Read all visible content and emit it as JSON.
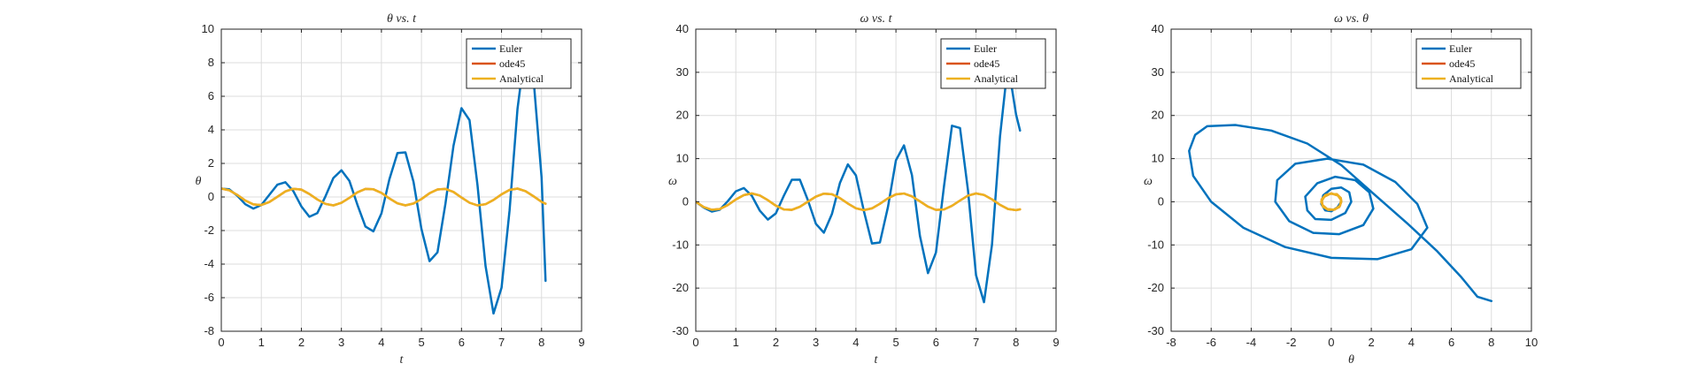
{
  "chart_data": [
    {
      "type": "line",
      "id": "theta_t",
      "title": "θ vs. t",
      "xlabel": "t",
      "ylabel": "θ",
      "xlim": [
        0,
        9
      ],
      "ylim": [
        -8,
        10
      ],
      "xticks": [
        0,
        1,
        2,
        3,
        4,
        5,
        6,
        7,
        8,
        9
      ],
      "yticks": [
        -8,
        -6,
        -4,
        -2,
        0,
        2,
        4,
        6,
        8,
        10
      ],
      "grid": true,
      "legend": "top-right",
      "series": [
        {
          "name": "Euler",
          "color": "#0072BD",
          "x": [
            0.0,
            0.2,
            0.4,
            0.6,
            0.8,
            1.0,
            1.2,
            1.4,
            1.6,
            1.8,
            2.0,
            2.2,
            2.4,
            2.6,
            2.8,
            3.0,
            3.2,
            3.4,
            3.6,
            3.8,
            4.0,
            4.2,
            4.4,
            4.6,
            4.8,
            5.0,
            5.2,
            5.4,
            5.6,
            5.8,
            6.0,
            6.2,
            6.4,
            6.6,
            6.8,
            7.0,
            7.2,
            7.4,
            7.6,
            7.8,
            8.0,
            8.1
          ],
          "y": [
            0.5,
            0.46,
            0.07,
            -0.43,
            -0.69,
            -0.48,
            0.13,
            0.73,
            0.88,
            0.35,
            -0.56,
            -1.18,
            -0.96,
            0.03,
            1.13,
            1.59,
            0.96,
            -0.47,
            -1.76,
            -2.05,
            -0.98,
            1.06,
            2.62,
            2.66,
            0.91,
            -1.91,
            -3.82,
            -3.3,
            -0.4,
            3.05,
            5.29,
            4.58,
            0.71,
            -4.11,
            -6.94,
            -5.4,
            -0.82,
            5.25,
            8.97,
            7.05,
            1.17,
            -5.0
          ]
        },
        {
          "name": "ode45",
          "color": "#D95319",
          "x": [
            0.0,
            0.2,
            0.4,
            0.6,
            0.8,
            1.0,
            1.2,
            1.4,
            1.6,
            1.8,
            2.0,
            2.2,
            2.4,
            2.6,
            2.8,
            3.0,
            3.2,
            3.4,
            3.6,
            3.8,
            4.0,
            4.2,
            4.4,
            4.6,
            4.8,
            5.0,
            5.2,
            5.4,
            5.6,
            5.8,
            6.0,
            6.2,
            6.4,
            6.6,
            6.8,
            7.0,
            7.2,
            7.4,
            7.6,
            7.8,
            8.0,
            8.1
          ],
          "y": [
            0.5,
            0.4,
            0.12,
            -0.21,
            -0.44,
            -0.48,
            -0.3,
            0.01,
            0.33,
            0.49,
            0.44,
            0.18,
            -0.15,
            -0.41,
            -0.5,
            -0.35,
            -0.05,
            0.28,
            0.48,
            0.46,
            0.24,
            -0.09,
            -0.38,
            -0.5,
            -0.39,
            -0.12,
            0.22,
            0.45,
            0.48,
            0.3,
            -0.03,
            -0.34,
            -0.5,
            -0.43,
            -0.18,
            0.16,
            0.42,
            0.5,
            0.35,
            0.04,
            -0.29,
            -0.4
          ]
        },
        {
          "name": "Analytical",
          "color": "#EDB120",
          "x": [
            0.0,
            0.2,
            0.4,
            0.6,
            0.8,
            1.0,
            1.2,
            1.4,
            1.6,
            1.8,
            2.0,
            2.2,
            2.4,
            2.6,
            2.8,
            3.0,
            3.2,
            3.4,
            3.6,
            3.8,
            4.0,
            4.2,
            4.4,
            4.6,
            4.8,
            5.0,
            5.2,
            5.4,
            5.6,
            5.8,
            6.0,
            6.2,
            6.4,
            6.6,
            6.8,
            7.0,
            7.2,
            7.4,
            7.6,
            7.8,
            8.0,
            8.1
          ],
          "y": [
            0.5,
            0.4,
            0.12,
            -0.21,
            -0.44,
            -0.48,
            -0.3,
            0.01,
            0.33,
            0.49,
            0.44,
            0.18,
            -0.15,
            -0.41,
            -0.5,
            -0.35,
            -0.05,
            0.28,
            0.48,
            0.46,
            0.24,
            -0.09,
            -0.38,
            -0.5,
            -0.39,
            -0.12,
            0.22,
            0.45,
            0.48,
            0.3,
            -0.03,
            -0.34,
            -0.5,
            -0.43,
            -0.18,
            0.16,
            0.42,
            0.5,
            0.35,
            0.04,
            -0.29,
            -0.4
          ]
        }
      ]
    },
    {
      "type": "line",
      "id": "omega_t",
      "title": "ω vs. t",
      "xlabel": "t",
      "ylabel": "ω",
      "xlim": [
        0,
        9
      ],
      "ylim": [
        -30,
        40
      ],
      "xticks": [
        0,
        1,
        2,
        3,
        4,
        5,
        6,
        7,
        8,
        9
      ],
      "yticks": [
        -30,
        -20,
        -10,
        0,
        10,
        20,
        30,
        40
      ],
      "grid": true,
      "legend": "top-right",
      "series": [
        {
          "name": "Euler",
          "color": "#0072BD",
          "x": [
            0.0,
            0.2,
            0.4,
            0.6,
            0.8,
            1.0,
            1.2,
            1.4,
            1.6,
            1.8,
            2.0,
            2.2,
            2.4,
            2.6,
            2.8,
            3.0,
            3.2,
            3.4,
            3.6,
            3.8,
            4.0,
            4.2,
            4.4,
            4.6,
            4.8,
            5.0,
            5.2,
            5.4,
            5.6,
            5.8,
            6.0,
            6.2,
            6.4,
            6.6,
            6.8,
            7.0,
            7.2,
            7.4,
            7.6,
            7.8,
            8.0,
            8.1
          ],
          "y": [
            0.0,
            -1.34,
            -2.27,
            -1.83,
            0.15,
            2.42,
            3.18,
            1.39,
            -2.09,
            -4.13,
            -2.7,
            1.42,
            5.1,
            5.13,
            0.4,
            -5.11,
            -7.16,
            -2.84,
            4.33,
            8.66,
            6.13,
            -2.15,
            -9.66,
            -9.42,
            -1.21,
            9.61,
            13.07,
            6.16,
            -7.9,
            -16.54,
            -11.76,
            3.6,
            17.62,
            17.1,
            2.64,
            -17.03,
            -23.27,
            -9.98,
            15.22,
            32.04,
            20.22,
            16.5
          ]
        },
        {
          "name": "ode45",
          "color": "#D95319",
          "x": [
            0.0,
            0.2,
            0.4,
            0.6,
            0.8,
            1.0,
            1.2,
            1.4,
            1.6,
            1.8,
            2.0,
            2.2,
            2.4,
            2.6,
            2.8,
            3.0,
            3.2,
            3.4,
            3.6,
            3.8,
            4.0,
            4.2,
            4.4,
            4.6,
            4.8,
            5.0,
            5.2,
            5.4,
            5.6,
            5.8,
            6.0,
            6.2,
            6.4,
            6.6,
            6.8,
            7.0,
            7.2,
            7.4,
            7.6,
            7.8,
            8.0,
            8.1
          ],
          "y": [
            0.0,
            -1.23,
            -1.86,
            -1.67,
            -0.75,
            0.51,
            1.55,
            1.92,
            1.46,
            0.37,
            -0.89,
            -1.78,
            -1.88,
            -1.17,
            0.02,
            1.2,
            1.89,
            1.74,
            0.84,
            -0.41,
            -1.5,
            -1.94,
            -1.52,
            -0.47,
            0.8,
            1.73,
            1.91,
            1.25,
            0.1,
            -1.11,
            -1.87,
            -1.78,
            -0.93,
            0.3,
            1.43,
            1.94,
            1.58,
            0.56,
            -0.71,
            -1.68,
            -1.93,
            -1.75
          ]
        },
        {
          "name": "Analytical",
          "color": "#EDB120",
          "x": [
            0.0,
            0.2,
            0.4,
            0.6,
            0.8,
            1.0,
            1.2,
            1.4,
            1.6,
            1.8,
            2.0,
            2.2,
            2.4,
            2.6,
            2.8,
            3.0,
            3.2,
            3.4,
            3.6,
            3.8,
            4.0,
            4.2,
            4.4,
            4.6,
            4.8,
            5.0,
            5.2,
            5.4,
            5.6,
            5.8,
            6.0,
            6.2,
            6.4,
            6.6,
            6.8,
            7.0,
            7.2,
            7.4,
            7.6,
            7.8,
            8.0,
            8.1
          ],
          "y": [
            0.0,
            -1.23,
            -1.86,
            -1.67,
            -0.75,
            0.51,
            1.55,
            1.92,
            1.46,
            0.37,
            -0.89,
            -1.78,
            -1.88,
            -1.17,
            0.02,
            1.2,
            1.89,
            1.74,
            0.84,
            -0.41,
            -1.5,
            -1.94,
            -1.52,
            -0.47,
            0.8,
            1.73,
            1.91,
            1.25,
            0.1,
            -1.11,
            -1.87,
            -1.78,
            -0.93,
            0.3,
            1.43,
            1.94,
            1.58,
            0.56,
            -0.71,
            -1.68,
            -1.93,
            -1.75
          ]
        }
      ]
    },
    {
      "type": "line",
      "id": "omega_theta",
      "title": "ω vs. θ",
      "xlabel": "θ",
      "ylabel": "ω",
      "xlim": [
        -8,
        10
      ],
      "ylim": [
        -30,
        40
      ],
      "xticks": [
        -8,
        -6,
        -4,
        -2,
        0,
        2,
        4,
        6,
        8,
        10
      ],
      "yticks": [
        -30,
        -20,
        -10,
        0,
        10,
        20,
        30,
        40
      ],
      "grid": true,
      "legend": "top-right",
      "series": [
        {
          "name": "Euler",
          "color": "#0072BD",
          "x": [
            0.5,
            0.3,
            0.0,
            -0.3,
            -0.5,
            -0.4,
            0.0,
            0.5,
            0.9,
            1.0,
            0.7,
            0.0,
            -0.8,
            -1.2,
            -1.3,
            -0.7,
            0.2,
            1.2,
            1.9,
            2.1,
            1.6,
            0.4,
            -0.9,
            -2.1,
            -2.8,
            -2.7,
            -1.8,
            -0.2,
            1.6,
            3.2,
            4.3,
            4.8,
            4.0,
            2.3,
            0.0,
            -2.3,
            -4.4,
            -6.0,
            -6.9,
            -7.1,
            -6.8,
            -6.2,
            -4.8,
            -3.0,
            -1.2,
            0.5,
            2.2,
            3.8,
            5.3,
            6.5,
            7.3,
            8.0
          ],
          "y": [
            0.0,
            -1.3,
            -2.2,
            -2.0,
            -0.5,
            1.5,
            3.0,
            3.3,
            2.2,
            0.0,
            -2.6,
            -4.2,
            -4.0,
            -2.0,
            1.2,
            4.3,
            5.8,
            5.0,
            2.2,
            -1.6,
            -5.4,
            -7.5,
            -7.2,
            -4.5,
            0.0,
            5.0,
            8.8,
            10.0,
            8.6,
            4.6,
            -0.5,
            -6.0,
            -11.0,
            -13.3,
            -13.0,
            -10.5,
            -6.0,
            0.0,
            6.0,
            11.8,
            15.5,
            17.5,
            17.8,
            16.5,
            13.5,
            8.5,
            1.5,
            -5.0,
            -11.5,
            -17.5,
            -22.0,
            -23.0
          ]
        },
        {
          "name": "ode45",
          "color": "#D95319",
          "x": [
            0.5,
            0.4,
            0.12,
            -0.21,
            -0.44,
            -0.48,
            -0.3,
            0.01,
            0.33,
            0.49,
            0.44,
            0.18,
            -0.15,
            -0.41,
            -0.5,
            -0.35,
            -0.05,
            0.28,
            0.48,
            0.5
          ],
          "y": [
            0.0,
            -1.23,
            -1.86,
            -1.67,
            -0.75,
            0.51,
            1.55,
            1.92,
            1.46,
            0.37,
            -0.89,
            -1.78,
            -1.88,
            -1.17,
            0.02,
            1.2,
            1.89,
            1.74,
            0.84,
            0.0
          ]
        },
        {
          "name": "Analytical",
          "color": "#EDB120",
          "x": [
            0.5,
            0.4,
            0.12,
            -0.21,
            -0.44,
            -0.48,
            -0.3,
            0.01,
            0.33,
            0.49,
            0.44,
            0.18,
            -0.15,
            -0.41,
            -0.5,
            -0.35,
            -0.05,
            0.28,
            0.48,
            0.5
          ],
          "y": [
            0.0,
            -1.23,
            -1.86,
            -1.67,
            -0.75,
            0.51,
            1.55,
            1.92,
            1.46,
            0.37,
            -0.89,
            -1.78,
            -1.88,
            -1.17,
            0.02,
            1.2,
            1.89,
            1.74,
            0.84,
            0.0
          ]
        }
      ]
    }
  ]
}
